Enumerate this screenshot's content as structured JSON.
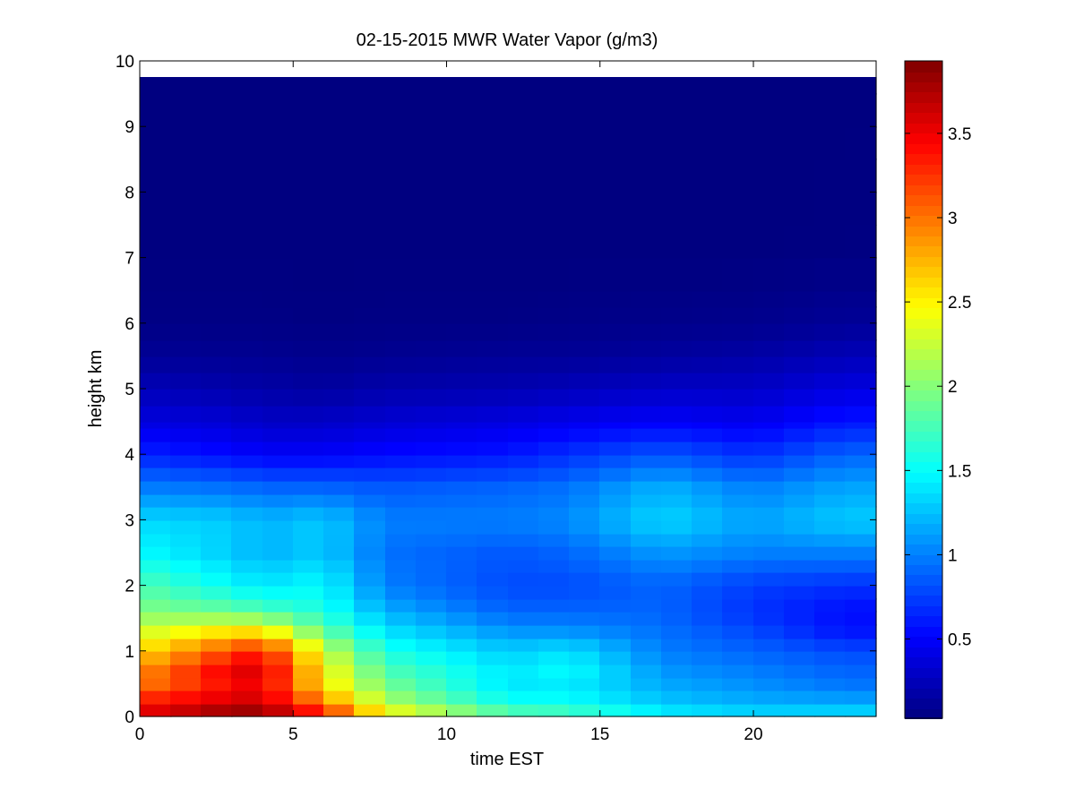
{
  "chart_data": {
    "type": "heatmap",
    "title": "02-15-2015 MWR Water Vapor (g/m3)",
    "xlabel": "time EST",
    "ylabel": "height km",
    "xlim": [
      0,
      24
    ],
    "ylim": [
      0,
      10
    ],
    "xticks": [
      "0",
      "5",
      "10",
      "15",
      "20"
    ],
    "xtick_values": [
      0,
      5,
      10,
      15,
      20
    ],
    "yticks": [
      "0",
      "1",
      "2",
      "3",
      "4",
      "5",
      "6",
      "7",
      "8",
      "9",
      "10"
    ],
    "ytick_values": [
      0,
      1,
      2,
      3,
      4,
      5,
      6,
      7,
      8,
      9,
      10
    ],
    "colormap": "jet",
    "colorbar": {
      "range": [
        0.03,
        3.93
      ],
      "ticks": [
        "0.5",
        "1",
        "1.5",
        "2",
        "2.5",
        "3",
        "3.5"
      ],
      "tick_values": [
        0.5,
        1,
        1.5,
        2,
        2.5,
        3,
        3.5
      ]
    },
    "grid": false,
    "time_bins_start": 0,
    "time_bin_width": 1,
    "time_bins": 24,
    "data_top_height": 9.75,
    "profile_height_nodes": [
      0,
      0.2,
      0.4,
      0.7,
      1.0,
      1.3,
      1.6,
      2.0,
      2.5,
      3.0,
      3.5,
      4.0,
      4.5,
      5.0,
      5.5,
      6.0,
      7.0,
      10.0
    ],
    "representative_profiles": [
      {
        "time": 0,
        "values": [
          3.5,
          3.5,
          3.0,
          2.9,
          2.6,
          2.3,
          2.0,
          1.8,
          1.5,
          1.35,
          1.0,
          0.65,
          0.4,
          0.25,
          0.12,
          0.05,
          0.03,
          0.03
        ]
      },
      {
        "time": 3,
        "values": [
          3.9,
          3.7,
          3.4,
          3.5,
          3.2,
          2.6,
          1.9,
          1.5,
          1.3,
          1.3,
          0.95,
          0.55,
          0.35,
          0.2,
          0.1,
          0.05,
          0.03,
          0.03
        ]
      },
      {
        "time": 4,
        "values": [
          3.9,
          3.7,
          3.5,
          3.6,
          3.4,
          2.6,
          1.8,
          1.4,
          1.2,
          1.2,
          0.9,
          0.5,
          0.3,
          0.18,
          0.1,
          0.05,
          0.03,
          0.03
        ]
      },
      {
        "time": 6,
        "values": [
          3.4,
          3.1,
          2.6,
          2.5,
          2.3,
          1.9,
          1.6,
          1.5,
          1.3,
          1.3,
          0.9,
          0.5,
          0.3,
          0.15,
          0.08,
          0.04,
          0.03,
          0.03
        ]
      },
      {
        "time": 8,
        "values": [
          2.6,
          2.2,
          2.0,
          1.8,
          1.6,
          1.4,
          1.2,
          1.0,
          0.95,
          1.0,
          0.85,
          0.55,
          0.35,
          0.2,
          0.1,
          0.05,
          0.03,
          0.03
        ]
      },
      {
        "time": 12,
        "values": [
          1.9,
          1.6,
          1.4,
          1.4,
          1.3,
          1.1,
          0.9,
          0.8,
          0.85,
          1.0,
          0.9,
          0.6,
          0.4,
          0.22,
          0.12,
          0.05,
          0.03,
          0.03
        ]
      },
      {
        "time": 14,
        "values": [
          1.8,
          1.6,
          1.4,
          1.5,
          1.4,
          1.1,
          0.9,
          0.8,
          0.9,
          1.05,
          0.95,
          0.7,
          0.45,
          0.25,
          0.12,
          0.06,
          0.03,
          0.03
        ]
      },
      {
        "time": 17,
        "values": [
          1.5,
          1.3,
          1.2,
          1.1,
          1.0,
          0.95,
          0.9,
          0.9,
          1.1,
          1.35,
          1.2,
          0.85,
          0.5,
          0.3,
          0.15,
          0.07,
          0.03,
          0.03
        ]
      },
      {
        "time": 20,
        "values": [
          1.4,
          1.2,
          1.1,
          1.0,
          0.9,
          0.8,
          0.7,
          0.75,
          1.0,
          1.15,
          1.0,
          0.7,
          0.45,
          0.3,
          0.18,
          0.08,
          0.03,
          0.03
        ]
      },
      {
        "time": 23,
        "values": [
          1.4,
          1.2,
          1.0,
          0.9,
          0.8,
          0.6,
          0.55,
          0.7,
          1.0,
          1.3,
          1.15,
          0.9,
          0.6,
          0.4,
          0.25,
          0.12,
          0.04,
          0.03
        ]
      }
    ]
  }
}
